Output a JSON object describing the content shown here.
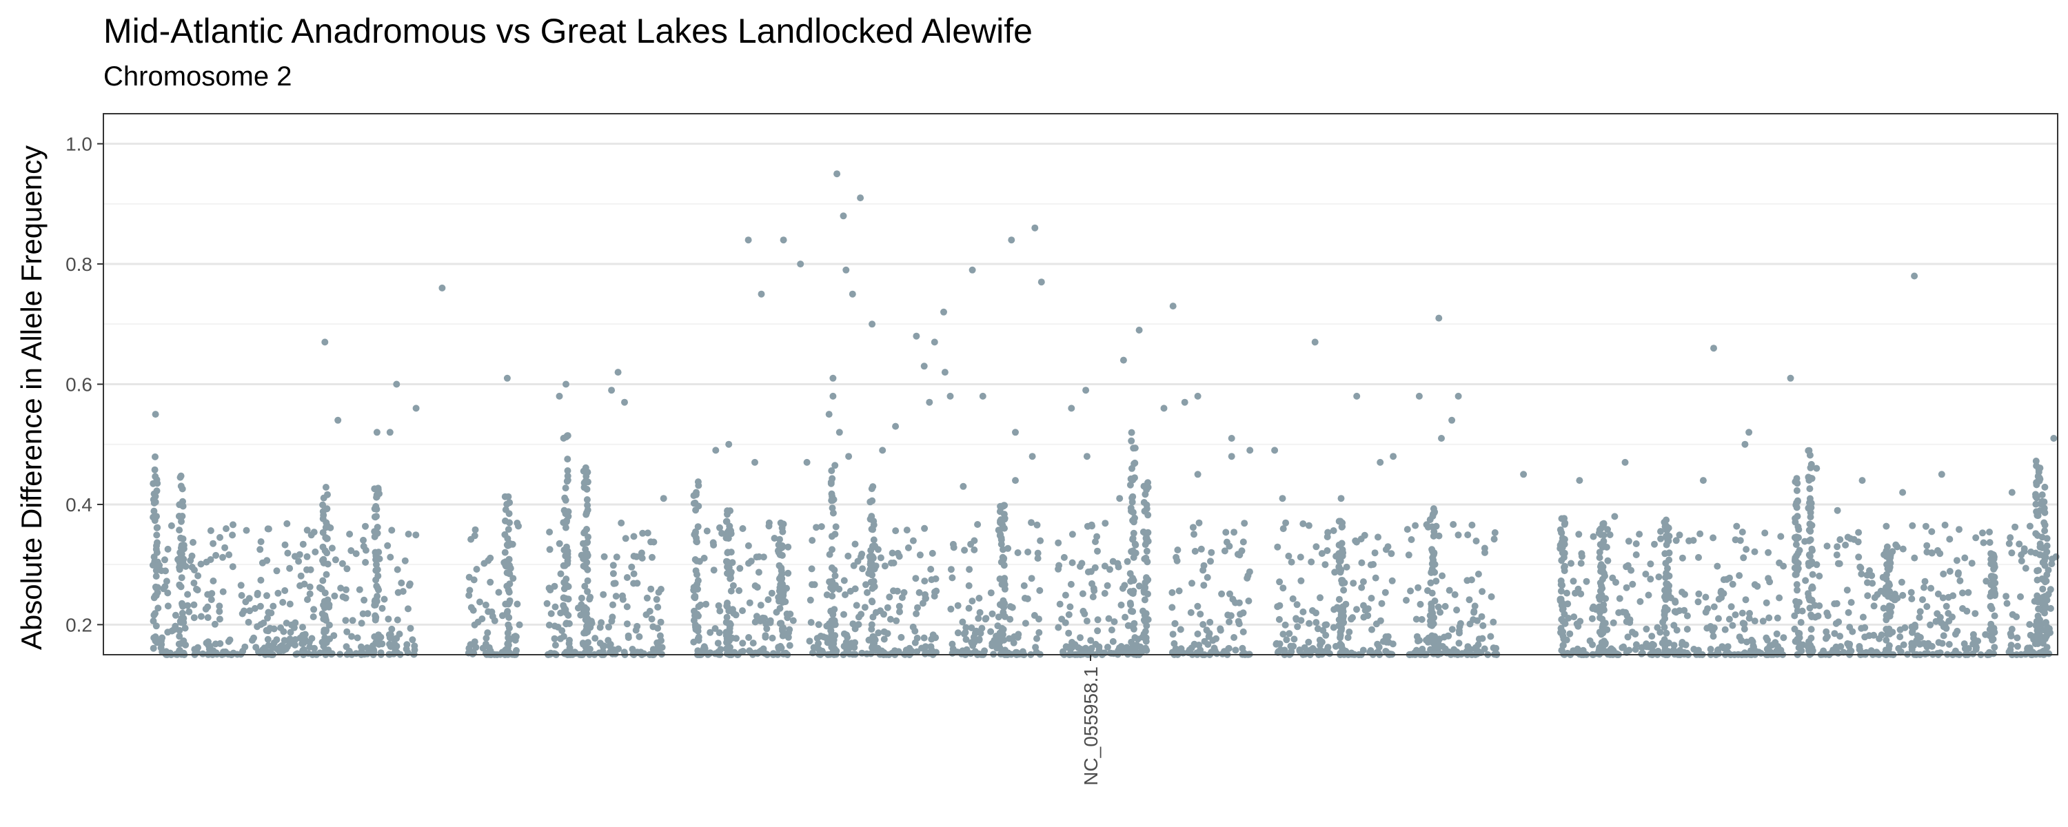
{
  "chart_data": {
    "type": "scatter",
    "title": "Mid-Atlantic Anadromous vs Great Lakes Landlocked Alewife",
    "subtitle": "Chromosome 2",
    "xlabel": "",
    "ylabel": "Absolute Difference in Allele Frequency",
    "x_categories": [
      "NC_055958.1"
    ],
    "ylim": [
      0.15,
      1.05
    ],
    "yticks": [
      0.2,
      0.4,
      0.6,
      0.8,
      1.0
    ],
    "ytick_labels": [
      "0.2",
      "0.4",
      "0.6",
      "0.8",
      "1.0"
    ],
    "grid": true,
    "legend": "none",
    "point_color": "#8a9ea8",
    "series": [
      {
        "values": [
          [
            0.04,
            0.55
          ],
          [
            0.17,
            0.67
          ],
          [
            0.21,
            0.52
          ],
          [
            0.22,
            0.52
          ],
          [
            0.26,
            0.76
          ],
          [
            0.35,
            0.58
          ],
          [
            0.24,
            0.56
          ],
          [
            0.18,
            0.54
          ],
          [
            0.225,
            0.6
          ],
          [
            0.31,
            0.61
          ],
          [
            0.355,
            0.6
          ],
          [
            0.39,
            0.59
          ],
          [
            0.395,
            0.62
          ],
          [
            0.4,
            0.57
          ],
          [
            0.495,
            0.84
          ],
          [
            0.48,
            0.5
          ],
          [
            0.522,
            0.84
          ],
          [
            0.535,
            0.8
          ],
          [
            0.563,
            0.95
          ],
          [
            0.581,
            0.91
          ],
          [
            0.568,
            0.88
          ],
          [
            0.57,
            0.79
          ],
          [
            0.575,
            0.75
          ],
          [
            0.59,
            0.7
          ],
          [
            0.505,
            0.75
          ],
          [
            0.624,
            0.68
          ],
          [
            0.638,
            0.67
          ],
          [
            0.646,
            0.62
          ],
          [
            0.645,
            0.72
          ],
          [
            0.667,
            0.79
          ],
          [
            0.697,
            0.84
          ],
          [
            0.715,
            0.86
          ],
          [
            0.72,
            0.77
          ],
          [
            0.63,
            0.63
          ],
          [
            0.634,
            0.57
          ],
          [
            0.65,
            0.58
          ],
          [
            0.675,
            0.58
          ],
          [
            0.795,
            0.69
          ],
          [
            0.783,
            0.64
          ],
          [
            0.821,
            0.73
          ],
          [
            0.754,
            0.59
          ],
          [
            0.743,
            0.56
          ],
          [
            0.83,
            0.57
          ],
          [
            0.814,
            0.56
          ],
          [
            0.84,
            0.58
          ],
          [
            0.93,
            0.67
          ],
          [
            0.88,
            0.49
          ],
          [
            0.962,
            0.58
          ],
          [
            1.025,
            0.71
          ],
          [
            1.04,
            0.58
          ],
          [
            1.035,
            0.54
          ],
          [
            1.01,
            0.58
          ],
          [
            1.027,
            0.51
          ],
          [
            0.98,
            0.47
          ],
          [
            0.99,
            0.48
          ],
          [
            1.236,
            0.66
          ],
          [
            1.168,
            0.47
          ],
          [
            1.39,
            0.78
          ],
          [
            1.295,
            0.61
          ],
          [
            1.263,
            0.52
          ],
          [
            1.26,
            0.5
          ],
          [
            1.497,
            0.51
          ],
          [
            0.5,
            0.47
          ],
          [
            0.56,
            0.61
          ],
          [
            0.56,
            0.58
          ],
          [
            0.557,
            0.55
          ],
          [
            0.565,
            0.52
          ],
          [
            0.572,
            0.48
          ],
          [
            0.47,
            0.49
          ],
          [
            0.43,
            0.41
          ],
          [
            0.54,
            0.47
          ],
          [
            0.455,
            0.42
          ],
          [
            0.598,
            0.49
          ],
          [
            0.608,
            0.53
          ],
          [
            0.66,
            0.43
          ],
          [
            0.7,
            0.52
          ],
          [
            0.713,
            0.48
          ],
          [
            0.7,
            0.44
          ],
          [
            0.755,
            0.48
          ],
          [
            0.78,
            0.41
          ],
          [
            0.866,
            0.48
          ],
          [
            0.899,
            0.49
          ],
          [
            0.84,
            0.45
          ],
          [
            0.866,
            0.51
          ],
          [
            0.905,
            0.41
          ],
          [
            0.95,
            0.41
          ],
          [
            1.09,
            0.45
          ],
          [
            1.133,
            0.44
          ],
          [
            1.16,
            0.38
          ],
          [
            1.35,
            0.44
          ],
          [
            1.331,
            0.39
          ],
          [
            1.381,
            0.42
          ],
          [
            1.411,
            0.45
          ],
          [
            1.465,
            0.42
          ],
          [
            1.315,
            0.46
          ],
          [
            1.228,
            0.44
          ]
        ]
      }
    ],
    "x_segments": [
      [
        0.04,
        0.24
      ],
      [
        0.28,
        0.32
      ],
      [
        0.34,
        0.43
      ],
      [
        0.455,
        0.53
      ],
      [
        0.54,
        0.64
      ],
      [
        0.65,
        0.72
      ],
      [
        0.73,
        0.8
      ],
      [
        0.82,
        0.88
      ],
      [
        0.9,
        0.99
      ],
      [
        1.0,
        1.07
      ],
      [
        1.12,
        1.2
      ],
      [
        1.2,
        1.29
      ],
      [
        1.3,
        1.37
      ],
      [
        1.37,
        1.45
      ],
      [
        1.46,
        1.5
      ]
    ],
    "segment_peaks": [
      [
        0.04,
        0.48
      ],
      [
        0.06,
        0.45
      ],
      [
        0.17,
        0.43
      ],
      [
        0.21,
        0.43
      ],
      [
        0.31,
        0.42
      ],
      [
        0.37,
        0.47
      ],
      [
        0.355,
        0.52
      ],
      [
        0.455,
        0.45
      ],
      [
        0.48,
        0.4
      ],
      [
        0.52,
        0.37
      ],
      [
        0.56,
        0.47
      ],
      [
        0.59,
        0.43
      ],
      [
        0.69,
        0.4
      ],
      [
        0.79,
        0.52
      ],
      [
        0.8,
        0.44
      ],
      [
        0.95,
        0.38
      ],
      [
        1.02,
        0.4
      ],
      [
        1.12,
        0.38
      ],
      [
        1.15,
        0.37
      ],
      [
        1.2,
        0.38
      ],
      [
        1.3,
        0.45
      ],
      [
        1.31,
        0.5
      ],
      [
        1.37,
        0.33
      ],
      [
        1.45,
        0.32
      ],
      [
        1.485,
        0.48
      ],
      [
        1.49,
        0.43
      ]
    ]
  }
}
